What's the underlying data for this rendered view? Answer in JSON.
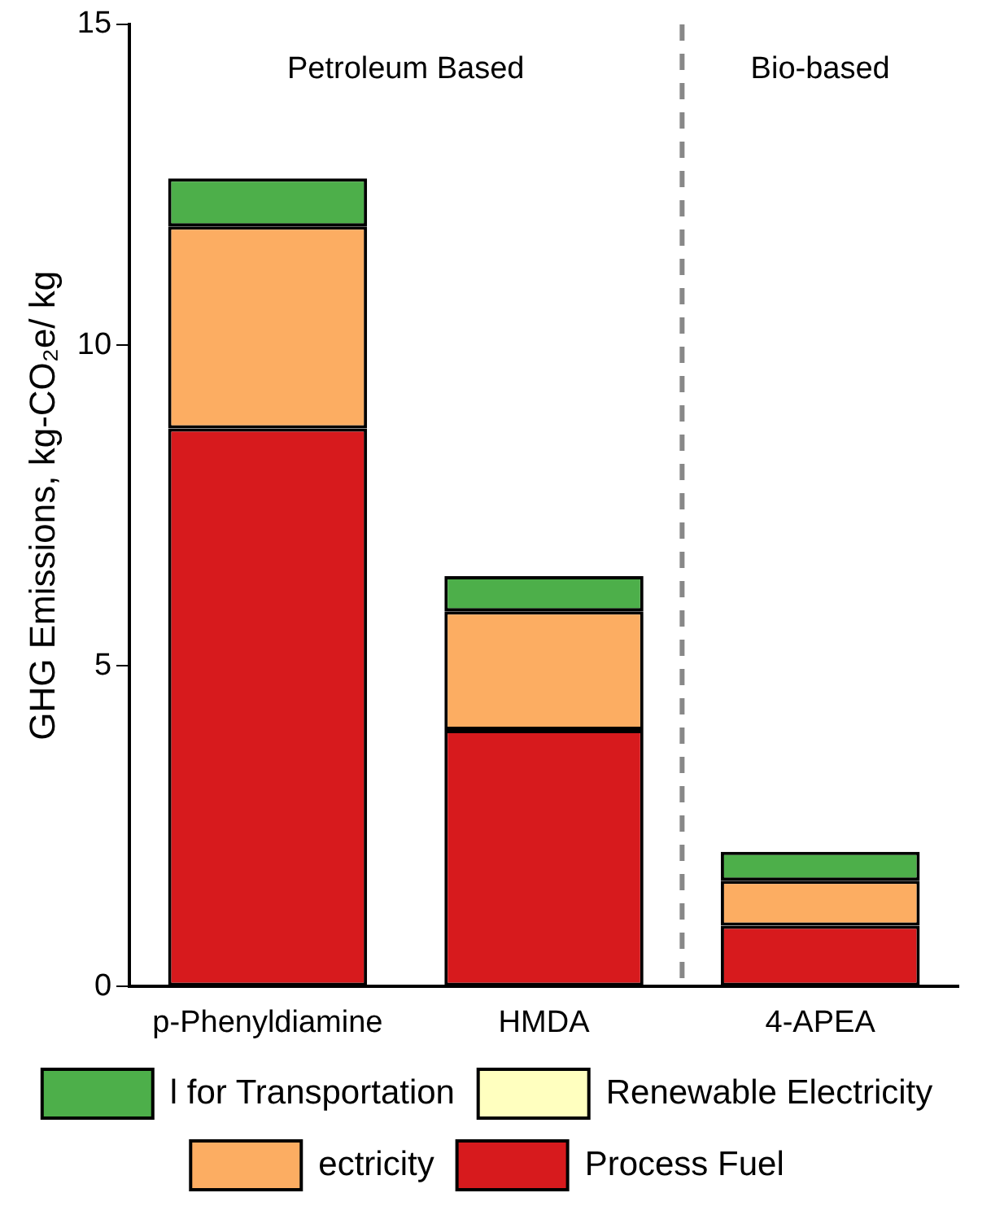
{
  "chart_data": {
    "type": "bar",
    "stacked": true,
    "ylabel": "GHG Emissions, kg-CO₂e/ kg",
    "categories": [
      "p-Phenyldiamine",
      "HMDA",
      "4-APEA"
    ],
    "series": [
      {
        "name": "Process Fuel",
        "color": "#d71a1d",
        "values": [
          8.7,
          4.0,
          0.95
        ]
      },
      {
        "name": "ectricity",
        "color": "#fcad62",
        "values": [
          3.15,
          1.85,
          0.7
        ]
      },
      {
        "name": "Renewable Electricity",
        "color": "#ffffbf",
        "values": [
          0,
          0,
          0
        ]
      },
      {
        "name": "l for Transportation",
        "color": "#4daf4a",
        "values": [
          0.75,
          0.55,
          0.45
        ]
      }
    ],
    "ylim": [
      0,
      15
    ],
    "yticks": [
      0,
      5,
      10,
      15
    ],
    "grid": false,
    "legend": "bottom",
    "annotations": [
      "Petroleum Based",
      "Bio-based"
    ]
  }
}
